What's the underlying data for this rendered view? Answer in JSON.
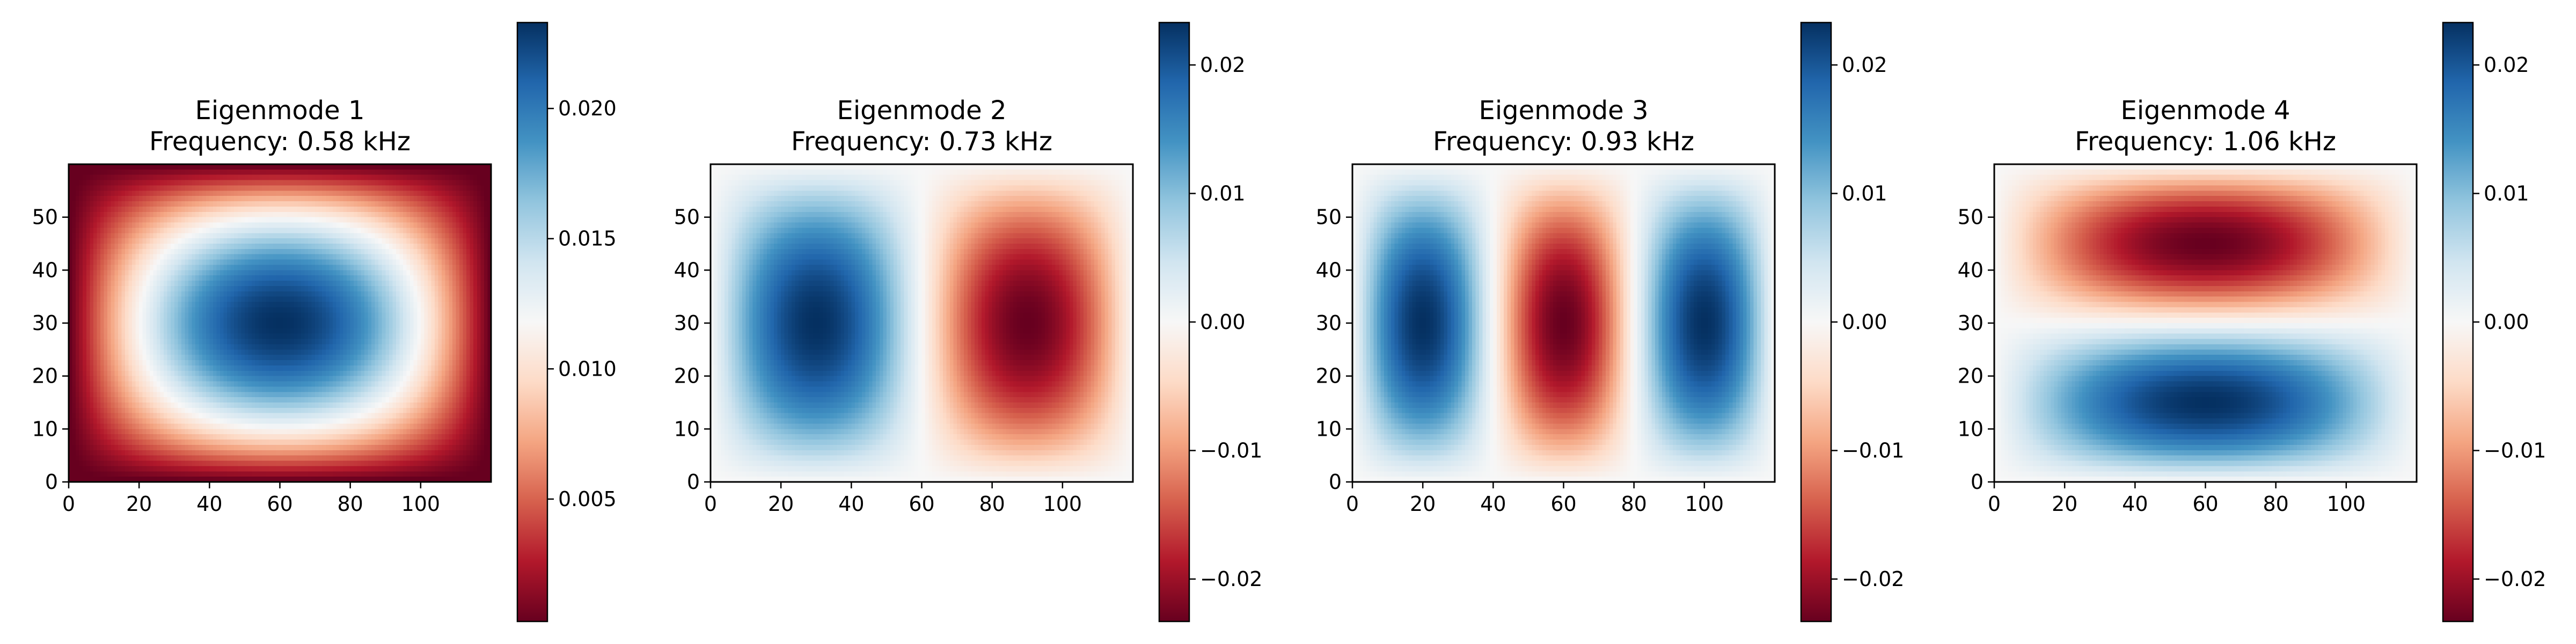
{
  "figure": {
    "colormap": "RdBu",
    "colormap_stops": [
      "#67001f",
      "#b2182b",
      "#d6604d",
      "#f4a582",
      "#fddbc7",
      "#f7f7f7",
      "#d1e5f0",
      "#92c5de",
      "#4393c3",
      "#2166ac",
      "#053061"
    ]
  },
  "chart_data": [
    {
      "type": "heatmap",
      "title": "Eigenmode 1",
      "subtitle": "Frequency: 0.58 kHz",
      "mode": {
        "nx": 1,
        "ny": 1
      },
      "x_ticks": [
        "0",
        "20",
        "40",
        "60",
        "80",
        "100"
      ],
      "y_ticks": [
        "0",
        "10",
        "20",
        "30",
        "40",
        "50"
      ],
      "xlim": [
        0,
        120
      ],
      "ylim": [
        0,
        60
      ],
      "colorbar_range": [
        0.0003,
        0.0233
      ],
      "colorbar_ticks": [
        "0.005",
        "0.010",
        "0.015",
        "0.020"
      ],
      "grid": false
    },
    {
      "type": "heatmap",
      "title": "Eigenmode 2",
      "subtitle": "Frequency: 0.73 kHz",
      "mode": {
        "nx": 2,
        "ny": 1
      },
      "x_ticks": [
        "0",
        "20",
        "40",
        "60",
        "80",
        "100"
      ],
      "y_ticks": [
        "0",
        "10",
        "20",
        "30",
        "40",
        "50"
      ],
      "xlim": [
        0,
        120
      ],
      "ylim": [
        0,
        60
      ],
      "colorbar_range": [
        -0.0233,
        0.0233
      ],
      "colorbar_ticks": [
        "−0.02",
        "−0.01",
        "0.00",
        "0.01",
        "0.02"
      ],
      "grid": false
    },
    {
      "type": "heatmap",
      "title": "Eigenmode 3",
      "subtitle": "Frequency: 0.93 kHz",
      "mode": {
        "nx": 3,
        "ny": 1
      },
      "x_ticks": [
        "0",
        "20",
        "40",
        "60",
        "80",
        "100"
      ],
      "y_ticks": [
        "0",
        "10",
        "20",
        "30",
        "40",
        "50"
      ],
      "xlim": [
        0,
        120
      ],
      "ylim": [
        0,
        60
      ],
      "colorbar_range": [
        -0.0233,
        0.0233
      ],
      "colorbar_ticks": [
        "−0.02",
        "−0.01",
        "0.00",
        "0.01",
        "0.02"
      ],
      "grid": false
    },
    {
      "type": "heatmap",
      "title": "Eigenmode 4",
      "subtitle": "Frequency: 1.06 kHz",
      "mode": {
        "nx": 1,
        "ny": 2
      },
      "x_ticks": [
        "0",
        "20",
        "40",
        "60",
        "80",
        "100"
      ],
      "y_ticks": [
        "0",
        "10",
        "20",
        "30",
        "40",
        "50"
      ],
      "xlim": [
        0,
        120
      ],
      "ylim": [
        0,
        60
      ],
      "colorbar_range": [
        -0.0233,
        0.0233
      ],
      "colorbar_ticks": [
        "−0.02",
        "−0.01",
        "0.00",
        "0.01",
        "0.02"
      ],
      "grid": false
    }
  ]
}
